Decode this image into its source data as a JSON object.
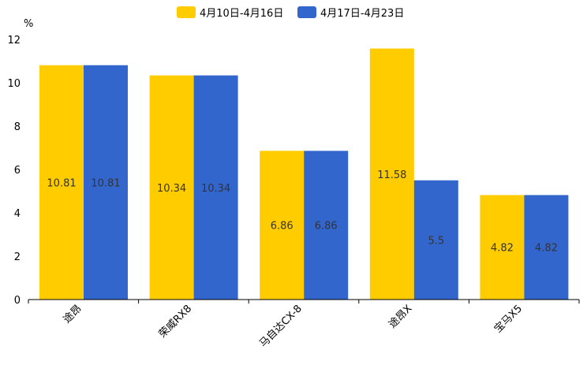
{
  "chart_data": {
    "type": "bar",
    "categories": [
      "途昂",
      "荣威RX8",
      "马自达CX-8",
      "途昂X",
      "宝马X5"
    ],
    "series": [
      {
        "name": "4月10日-4月16日",
        "color": "#FFCC00",
        "values": [
          10.81,
          10.34,
          6.86,
          11.58,
          4.82
        ]
      },
      {
        "name": "4月17日-4月23日",
        "color": "#3366CC",
        "values": [
          10.81,
          10.34,
          6.86,
          5.5,
          4.82
        ]
      }
    ],
    "data_labels": [
      [
        "10.81",
        "10.34",
        "6.86",
        "11.58",
        "4.82"
      ],
      [
        "10.81",
        "10.34",
        "6.86",
        "5.5",
        "4.82"
      ]
    ],
    "ylabel": "%",
    "ylim": [
      0,
      12
    ],
    "yticks": [
      0,
      2,
      4,
      6,
      8,
      10,
      12
    ],
    "grid": false,
    "legend_position": "top-center"
  }
}
